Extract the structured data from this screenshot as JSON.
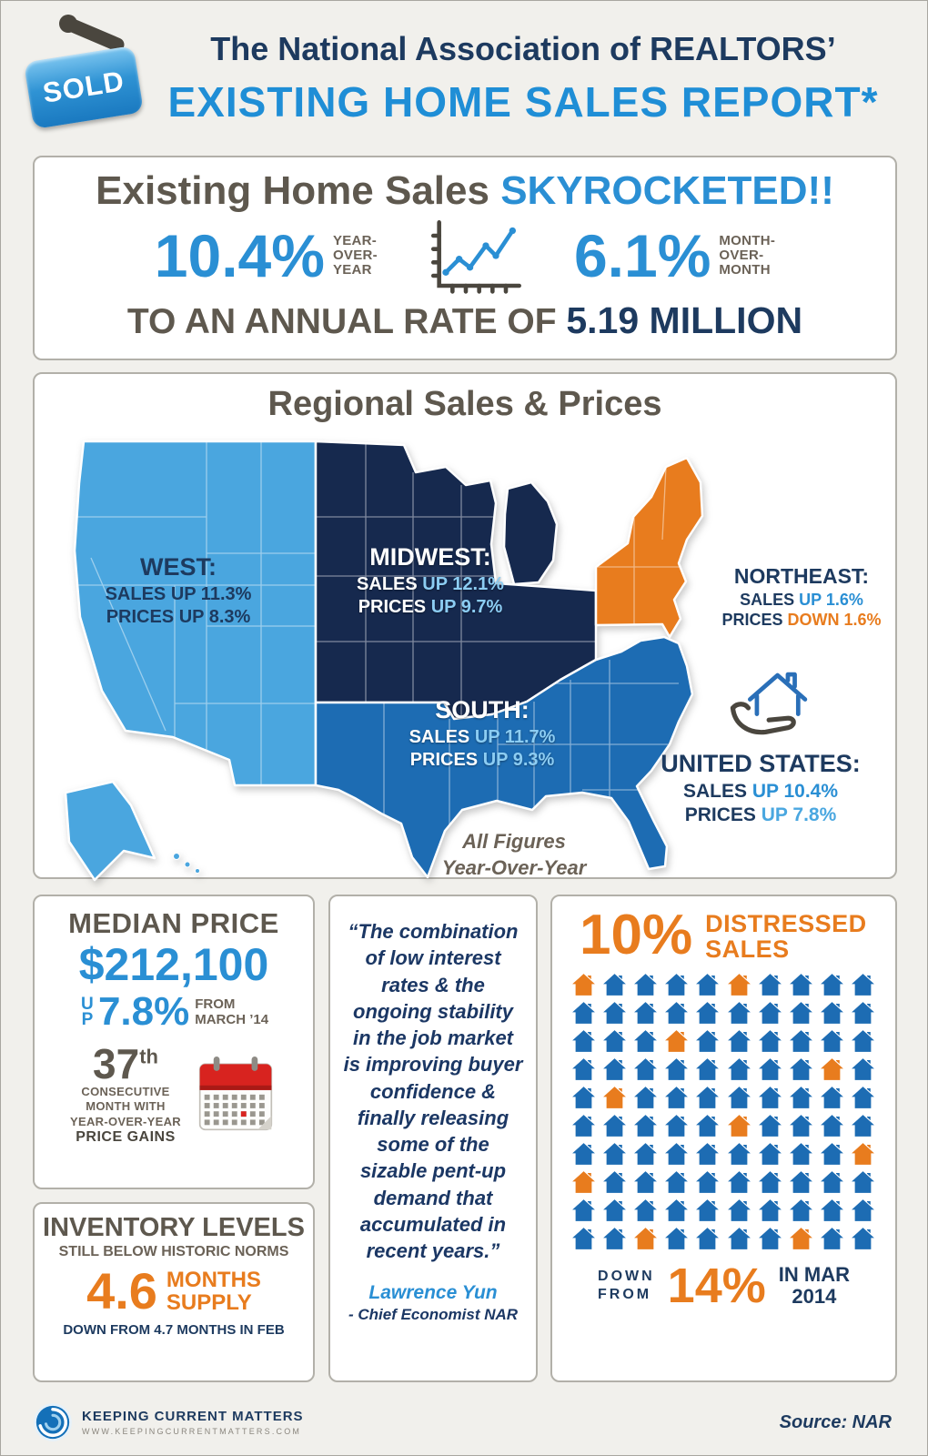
{
  "header": {
    "sold": "SOLD",
    "title1": "The National Association of REALTORS’",
    "title2": "EXISTING HOME SALES REPORT*"
  },
  "hero": {
    "headline": "Existing Home Sales ",
    "headline_accent": "SKYROCKETED!!",
    "yoy": {
      "value": "10.4%",
      "label": [
        "YEAR-",
        "OVER-",
        "YEAR"
      ]
    },
    "mom": {
      "value": "6.1%",
      "label": [
        "MONTH-",
        "OVER-",
        "MONTH"
      ]
    },
    "rate_prefix": "TO AN ANNUAL RATE OF ",
    "rate_value": "5.19 MILLION"
  },
  "regional": {
    "title": "Regional Sales & Prices",
    "west": {
      "name": "WEST:",
      "sales_label": "SALES ",
      "sales_value": "UP 11.3%",
      "prices_label": "PRICES ",
      "prices_value": "UP 8.3%"
    },
    "midwest": {
      "name": "MIDWEST:",
      "sales_label": "SALES ",
      "sales_value": "UP 12.1%",
      "prices_label": "PRICES ",
      "prices_value": "UP 9.7%"
    },
    "south": {
      "name": "SOUTH:",
      "sales_label": "SALES ",
      "sales_value": "UP 11.7%",
      "prices_label": "PRICES ",
      "prices_value": "UP 9.3%"
    },
    "northeast": {
      "name": "NORTHEAST:",
      "sales_label": "SALES ",
      "sales_value": "UP 1.6%",
      "prices_label": "PRICES ",
      "prices_value": "DOWN 1.6%"
    },
    "us": {
      "name": "UNITED STATES:",
      "sales_label": "SALES ",
      "sales_value": "UP 10.4%",
      "prices_label": "PRICES ",
      "prices_value": "UP 7.8%"
    },
    "footnote": [
      "All Figures",
      "Year-Over-Year"
    ]
  },
  "median": {
    "title": "MEDIAN PRICE",
    "price": "$212,100",
    "up_word": "UP",
    "up_value": "7.8%",
    "from": [
      "FROM",
      "MARCH ’14"
    ],
    "streak_number": "37",
    "streak_suffix": "th",
    "streak_lines": [
      "CONSECUTIVE",
      "MONTH WITH",
      "YEAR-OVER-YEAR"
    ],
    "streak_bold": "PRICE GAINS"
  },
  "inventory": {
    "title": "INVENTORY LEVELS",
    "subtitle": "STILL BELOW HISTORIC NORMS",
    "value": "4.6",
    "unit": [
      "MONTHS",
      "SUPPLY"
    ],
    "footnote": "DOWN FROM 4.7 MONTHS IN FEB"
  },
  "quote": {
    "text": "“The combination of low interest rates & the ongoing stability in the job market is improving buyer confidence & finally releasing some of the sizable pent-up demand that accumulated in recent years.”",
    "author": "Lawrence Yun",
    "role": "- Chief Economist NAR"
  },
  "distressed": {
    "value": "10%",
    "label": [
      "DISTRESSED",
      "SALES"
    ],
    "grid": {
      "rows": 10,
      "cols": 10,
      "orange": [
        [
          0,
          0
        ],
        [
          0,
          5
        ],
        [
          2,
          3
        ],
        [
          3,
          8
        ],
        [
          4,
          1
        ],
        [
          5,
          5
        ],
        [
          6,
          9
        ],
        [
          7,
          0
        ],
        [
          9,
          2
        ],
        [
          9,
          7
        ]
      ]
    },
    "down": [
      "DOWN",
      "FROM"
    ],
    "down_value": "14%",
    "period": [
      "IN MAR",
      "2014"
    ]
  },
  "footer": {
    "brand": "KEEPING CURRENT MATTERS",
    "url": "WWW.KEEPINGCURRENTMATTERS.COM",
    "source": "Source: NAR"
  },
  "colors": {
    "brand_blue": "#2a8fd4",
    "navy": "#1d3a5f",
    "orange": "#e87c1e",
    "taupe": "#5e584e",
    "west_fill": "#4aa6df",
    "midwest_fill": "#16294e",
    "south_fill": "#1d6cb3",
    "northeast_fill": "#e87c1e",
    "calendar_red": "#d8231f"
  }
}
